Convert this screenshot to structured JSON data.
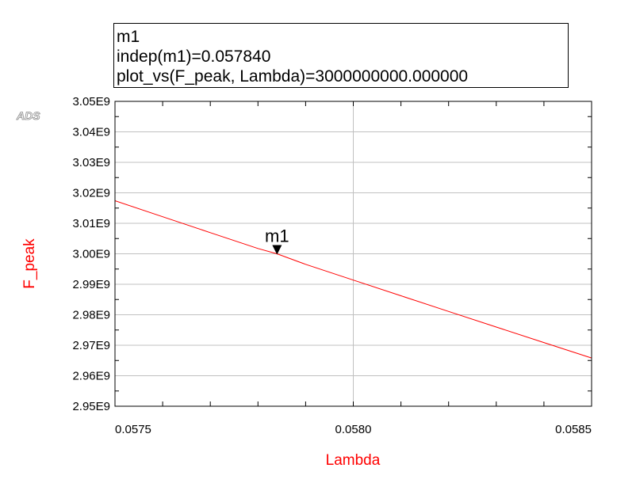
{
  "logo": "ADS",
  "marker_box": {
    "lines": [
      "m1",
      "indep(m1)=0.057840",
      "plot_vs(F_peak, Lambda)=3000000000.000000"
    ]
  },
  "chart_data": {
    "type": "line",
    "xlabel": "Lambda",
    "ylabel": "F_peak",
    "xlim": [
      0.0575,
      0.0585
    ],
    "ylim": [
      2950000000,
      3050000000
    ],
    "x_ticks": [
      0.0575,
      0.058,
      0.0585
    ],
    "x_tick_labels": [
      "0.0575",
      "0.0580",
      "0.0585"
    ],
    "y_ticks": [
      2950000000,
      2960000000,
      2970000000,
      2980000000,
      2990000000,
      3000000000,
      3010000000,
      3020000000,
      3030000000,
      3040000000,
      3050000000
    ],
    "y_tick_labels": [
      "2.95E9",
      "2.96E9",
      "2.97E9",
      "2.98E9",
      "2.99E9",
      "3.00E9",
      "3.01E9",
      "3.02E9",
      "3.03E9",
      "3.04E9",
      "3.05E9"
    ],
    "grid": true,
    "series": [
      {
        "color": "#ff0000",
        "x": [
          0.0575,
          0.0576,
          0.0577,
          0.0578,
          0.05784,
          0.0579,
          0.058,
          0.0581,
          0.0582,
          0.0583,
          0.0584,
          0.0585
        ],
        "y": [
          3017391304,
          3012152778,
          3006932409,
          3001730104,
          3000000000,
          2996545769,
          2991379310,
          2986230637,
          2981099656,
          2975986278,
          2970890411,
          2965811966
        ]
      }
    ],
    "markers": [
      {
        "label": "m1",
        "x": 0.05784,
        "y": 3000000000
      }
    ],
    "colors": {
      "trace": "#ff0000",
      "axis_title": "#ff0000",
      "grid": "#c0c0c0",
      "frame": "#000000"
    }
  }
}
